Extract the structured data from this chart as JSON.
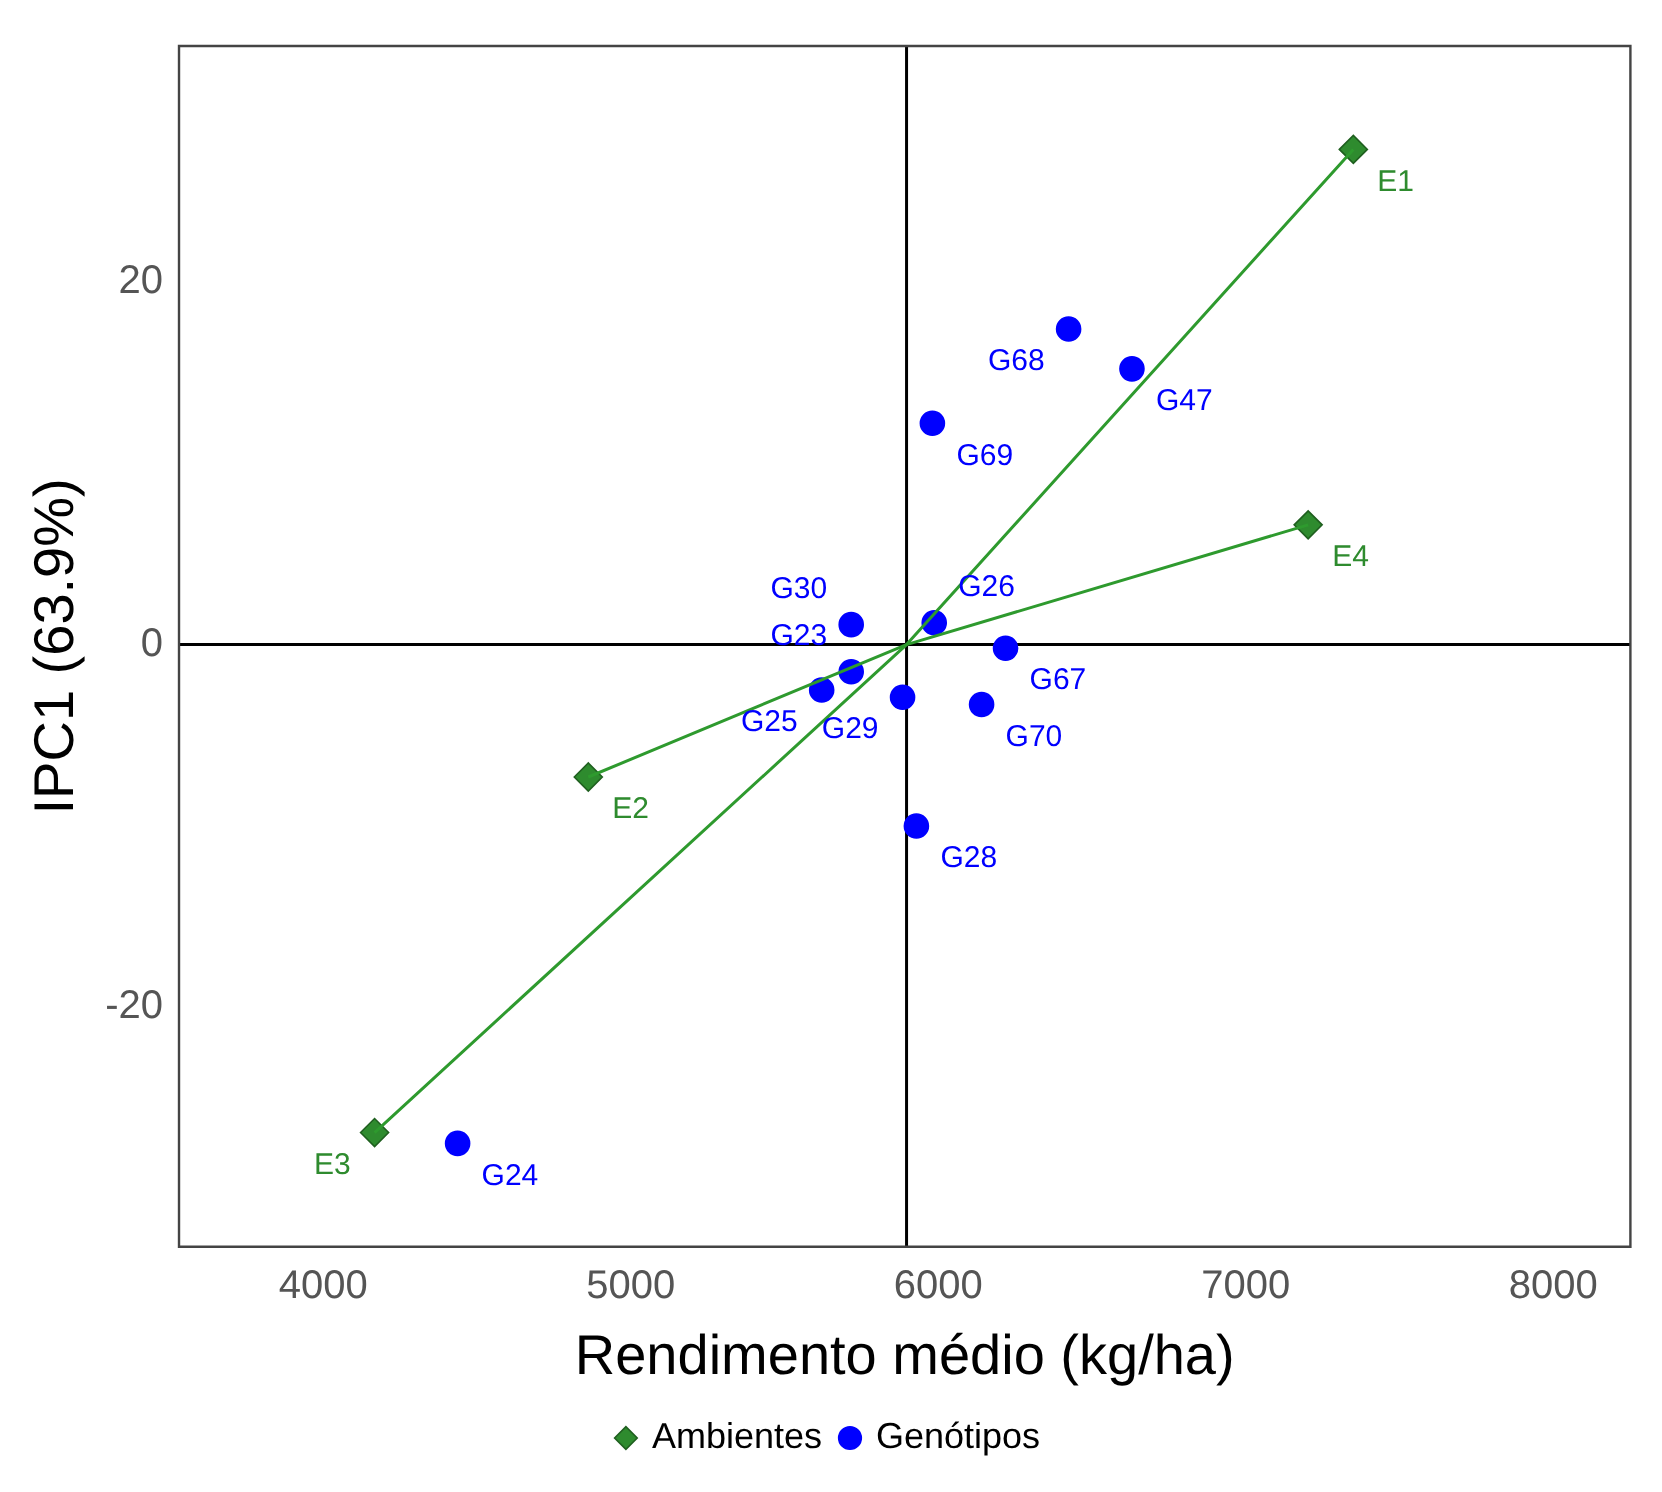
{
  "chart_data": {
    "type": "scatter",
    "xlabel": "Rendimento médio (kg/ha)",
    "ylabel": "IPC1 (63.9%)",
    "xlim": [
      3531,
      8251
    ],
    "ylim": [
      -33.2,
      33
    ],
    "xticks": [
      4000,
      5000,
      6000,
      7000,
      8000
    ],
    "yticks": [
      -20,
      0,
      20
    ],
    "grid": false,
    "legend": "bottom",
    "series": [
      {
        "type": "line",
        "color": "#2e9a2e",
        "marker": "none",
        "x": [
          4167,
          5897,
          7350
        ],
        "values": [
          -26.9,
          0,
          27.3
        ]
      },
      {
        "type": "line",
        "color": "#2e9a2e",
        "marker": "none",
        "x": [
          4862,
          5897,
          7203
        ],
        "values": [
          -7.3,
          0,
          6.6
        ]
      },
      {
        "name": "Ambientes",
        "type": "scatter",
        "marker": "diamond",
        "color": "#2e8b2e",
        "x": [
          7350,
          4862,
          4167,
          7203
        ],
        "values": [
          27.3,
          -7.3,
          -26.9,
          6.6
        ]
      },
      {
        "name": "Genótipos",
        "type": "scatter",
        "marker": "circle",
        "color": "#0000ff",
        "x": [
          4437,
          5717,
          5621,
          5717,
          5987,
          5884,
          5929,
          6219,
          6141,
          5981,
          6630,
          6424
        ],
        "values": [
          -27.5,
          -1.5,
          -2.5,
          1.1,
          1.2,
          -2.9,
          -10.0,
          -0.2,
          -3.3,
          12.2,
          15.2,
          17.4
        ]
      }
    ],
    "ref_lines": [
      {
        "axis": "x",
        "value": 5897,
        "color": "#000000"
      },
      {
        "axis": "y",
        "value": 0,
        "color": "#000000"
      }
    ],
    "annotations": [
      {
        "text": "E1",
        "x": 7350,
        "y": 27.3
      },
      {
        "text": "E2",
        "x": 4862,
        "y": -7.3
      },
      {
        "text": "E3",
        "x": 4167,
        "y": -26.9
      },
      {
        "text": "E4",
        "x": 7203,
        "y": 6.6
      },
      {
        "text": "G24",
        "x": 4437,
        "y": -27.5
      },
      {
        "text": "G23",
        "x": 5717,
        "y": -1.5
      },
      {
        "text": "G25",
        "x": 5621,
        "y": -2.5
      },
      {
        "text": "G30",
        "x": 5717,
        "y": 1.1
      },
      {
        "text": "G26",
        "x": 5987,
        "y": 1.2
      },
      {
        "text": "G29",
        "x": 5884,
        "y": -2.9
      },
      {
        "text": "G28",
        "x": 5929,
        "y": -10.0
      },
      {
        "text": "G67",
        "x": 6219,
        "y": -0.2
      },
      {
        "text": "G70",
        "x": 6141,
        "y": -3.3
      },
      {
        "text": "G69",
        "x": 5981,
        "y": 12.2
      },
      {
        "text": "G47",
        "x": 6630,
        "y": 15.2
      },
      {
        "text": "G68",
        "x": 6424,
        "y": 17.4
      }
    ]
  }
}
